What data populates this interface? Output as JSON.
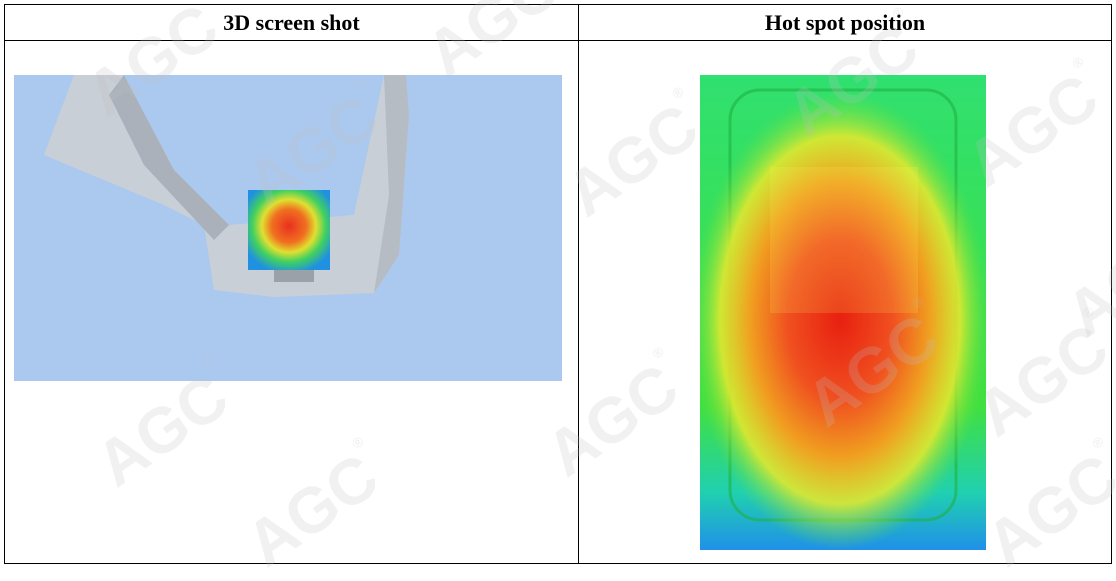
{
  "table": {
    "header": [
      "3D screen shot",
      "Hot spot position"
    ]
  },
  "watermark": {
    "text": "AGC",
    "mark": "®"
  }
}
